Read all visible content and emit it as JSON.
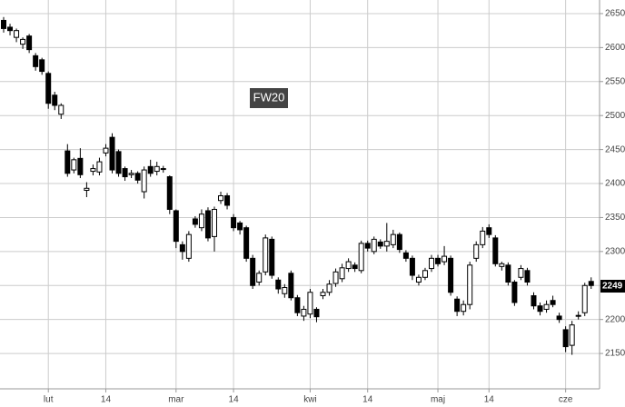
{
  "chart_data": {
    "type": "candlestick",
    "title": "FW20",
    "categories": [
      null,
      null,
      null,
      null,
      null,
      null,
      null,
      "lut",
      null,
      null,
      null,
      null,
      null,
      null,
      null,
      null,
      "14",
      null,
      null,
      null,
      null,
      null,
      null,
      null,
      null,
      null,
      null,
      "mar",
      null,
      null,
      null,
      null,
      null,
      null,
      null,
      null,
      "14",
      null,
      null,
      null,
      null,
      null,
      null,
      null,
      null,
      null,
      null,
      null,
      "kwi",
      null,
      null,
      null,
      null,
      null,
      null,
      null,
      null,
      "14",
      null,
      null,
      null,
      null,
      null,
      null,
      null,
      null,
      null,
      null,
      "maj",
      null,
      null,
      null,
      null,
      null,
      null,
      null,
      "14",
      null,
      null,
      null,
      null,
      null,
      null,
      null,
      null,
      null,
      null,
      null,
      "cze",
      null,
      null,
      null,
      null
    ],
    "open": [
      2640,
      2630,
      2615,
      2605,
      2617,
      2588,
      2582,
      2562,
      2530,
      2502,
      2448,
      2420,
      2437,
      2390,
      2418,
      2417,
      2445,
      2468,
      2447,
      2422,
      2413,
      2415,
      2388,
      2425,
      2418,
      2421,
      2410,
      2360,
      2310,
      2290,
      2348,
      2335,
      2360,
      2322,
      2375,
      2382,
      2350,
      2342,
      2335,
      2290,
      2255,
      2270,
      2318,
      2258,
      2238,
      2268,
      2232,
      2205,
      2208,
      2215,
      2235,
      2240,
      2253,
      2260,
      2275,
      2280,
      2272,
      2312,
      2300,
      2314,
      2308,
      2310,
      2325,
      2298,
      2290,
      2255,
      2262,
      2275,
      2290,
      2285,
      2290,
      2230,
      2212,
      2222,
      2290,
      2310,
      2335,
      2320,
      2278,
      2280,
      2255,
      2262,
      2272,
      2235,
      2220,
      2215,
      2228,
      2205,
      2185,
      2162,
      2205,
      2210,
      2256
    ],
    "high": [
      2645,
      2635,
      2628,
      2615,
      2620,
      2592,
      2585,
      2565,
      2535,
      2518,
      2458,
      2438,
      2452,
      2402,
      2428,
      2438,
      2458,
      2474,
      2450,
      2425,
      2420,
      2418,
      2425,
      2435,
      2432,
      2426,
      2412,
      2362,
      2315,
      2330,
      2352,
      2362,
      2365,
      2366,
      2388,
      2386,
      2355,
      2345,
      2338,
      2295,
      2272,
      2325,
      2322,
      2262,
      2252,
      2272,
      2236,
      2220,
      2245,
      2218,
      2245,
      2258,
      2275,
      2282,
      2290,
      2284,
      2316,
      2316,
      2322,
      2318,
      2342,
      2332,
      2328,
      2302,
      2294,
      2266,
      2276,
      2295,
      2295,
      2308,
      2294,
      2234,
      2228,
      2285,
      2315,
      2336,
      2340,
      2324,
      2285,
      2284,
      2258,
      2280,
      2276,
      2240,
      2225,
      2228,
      2235,
      2210,
      2190,
      2198,
      2212,
      2254,
      2262
    ],
    "low": [
      2622,
      2618,
      2608,
      2598,
      2592,
      2566,
      2560,
      2510,
      2508,
      2495,
      2410,
      2415,
      2408,
      2380,
      2412,
      2412,
      2440,
      2415,
      2410,
      2404,
      2408,
      2400,
      2378,
      2410,
      2412,
      2416,
      2355,
      2305,
      2288,
      2285,
      2335,
      2330,
      2315,
      2300,
      2370,
      2362,
      2330,
      2325,
      2285,
      2245,
      2250,
      2265,
      2260,
      2238,
      2232,
      2228,
      2205,
      2198,
      2202,
      2196,
      2230,
      2235,
      2248,
      2255,
      2270,
      2270,
      2268,
      2300,
      2296,
      2304,
      2300,
      2305,
      2298,
      2285,
      2258,
      2250,
      2258,
      2270,
      2278,
      2280,
      2235,
      2205,
      2206,
      2215,
      2285,
      2305,
      2320,
      2278,
      2272,
      2250,
      2220,
      2258,
      2250,
      2215,
      2206,
      2210,
      2218,
      2195,
      2152,
      2148,
      2200,
      2205,
      2245
    ],
    "close": [
      2628,
      2625,
      2625,
      2612,
      2597,
      2572,
      2565,
      2518,
      2515,
      2515,
      2415,
      2435,
      2413,
      2393,
      2422,
      2432,
      2452,
      2420,
      2415,
      2410,
      2415,
      2405,
      2420,
      2415,
      2425,
      2422,
      2362,
      2315,
      2300,
      2325,
      2340,
      2355,
      2320,
      2362,
      2382,
      2368,
      2335,
      2332,
      2290,
      2250,
      2268,
      2320,
      2265,
      2245,
      2247,
      2232,
      2210,
      2215,
      2240,
      2204,
      2240,
      2252,
      2270,
      2276,
      2285,
      2275,
      2312,
      2305,
      2318,
      2308,
      2315,
      2325,
      2303,
      2290,
      2265,
      2262,
      2272,
      2290,
      2282,
      2293,
      2240,
      2212,
      2222,
      2280,
      2310,
      2330,
      2325,
      2282,
      2282,
      2255,
      2225,
      2275,
      2255,
      2220,
      2212,
      2222,
      2222,
      2200,
      2160,
      2192,
      2206,
      2250,
      2250
    ],
    "last_price": 2249,
    "ylim": [
      2098,
      2670
    ],
    "yticks": [
      2150,
      2200,
      2250,
      2300,
      2350,
      2400,
      2450,
      2500,
      2550,
      2600,
      2650
    ],
    "grid": true
  }
}
